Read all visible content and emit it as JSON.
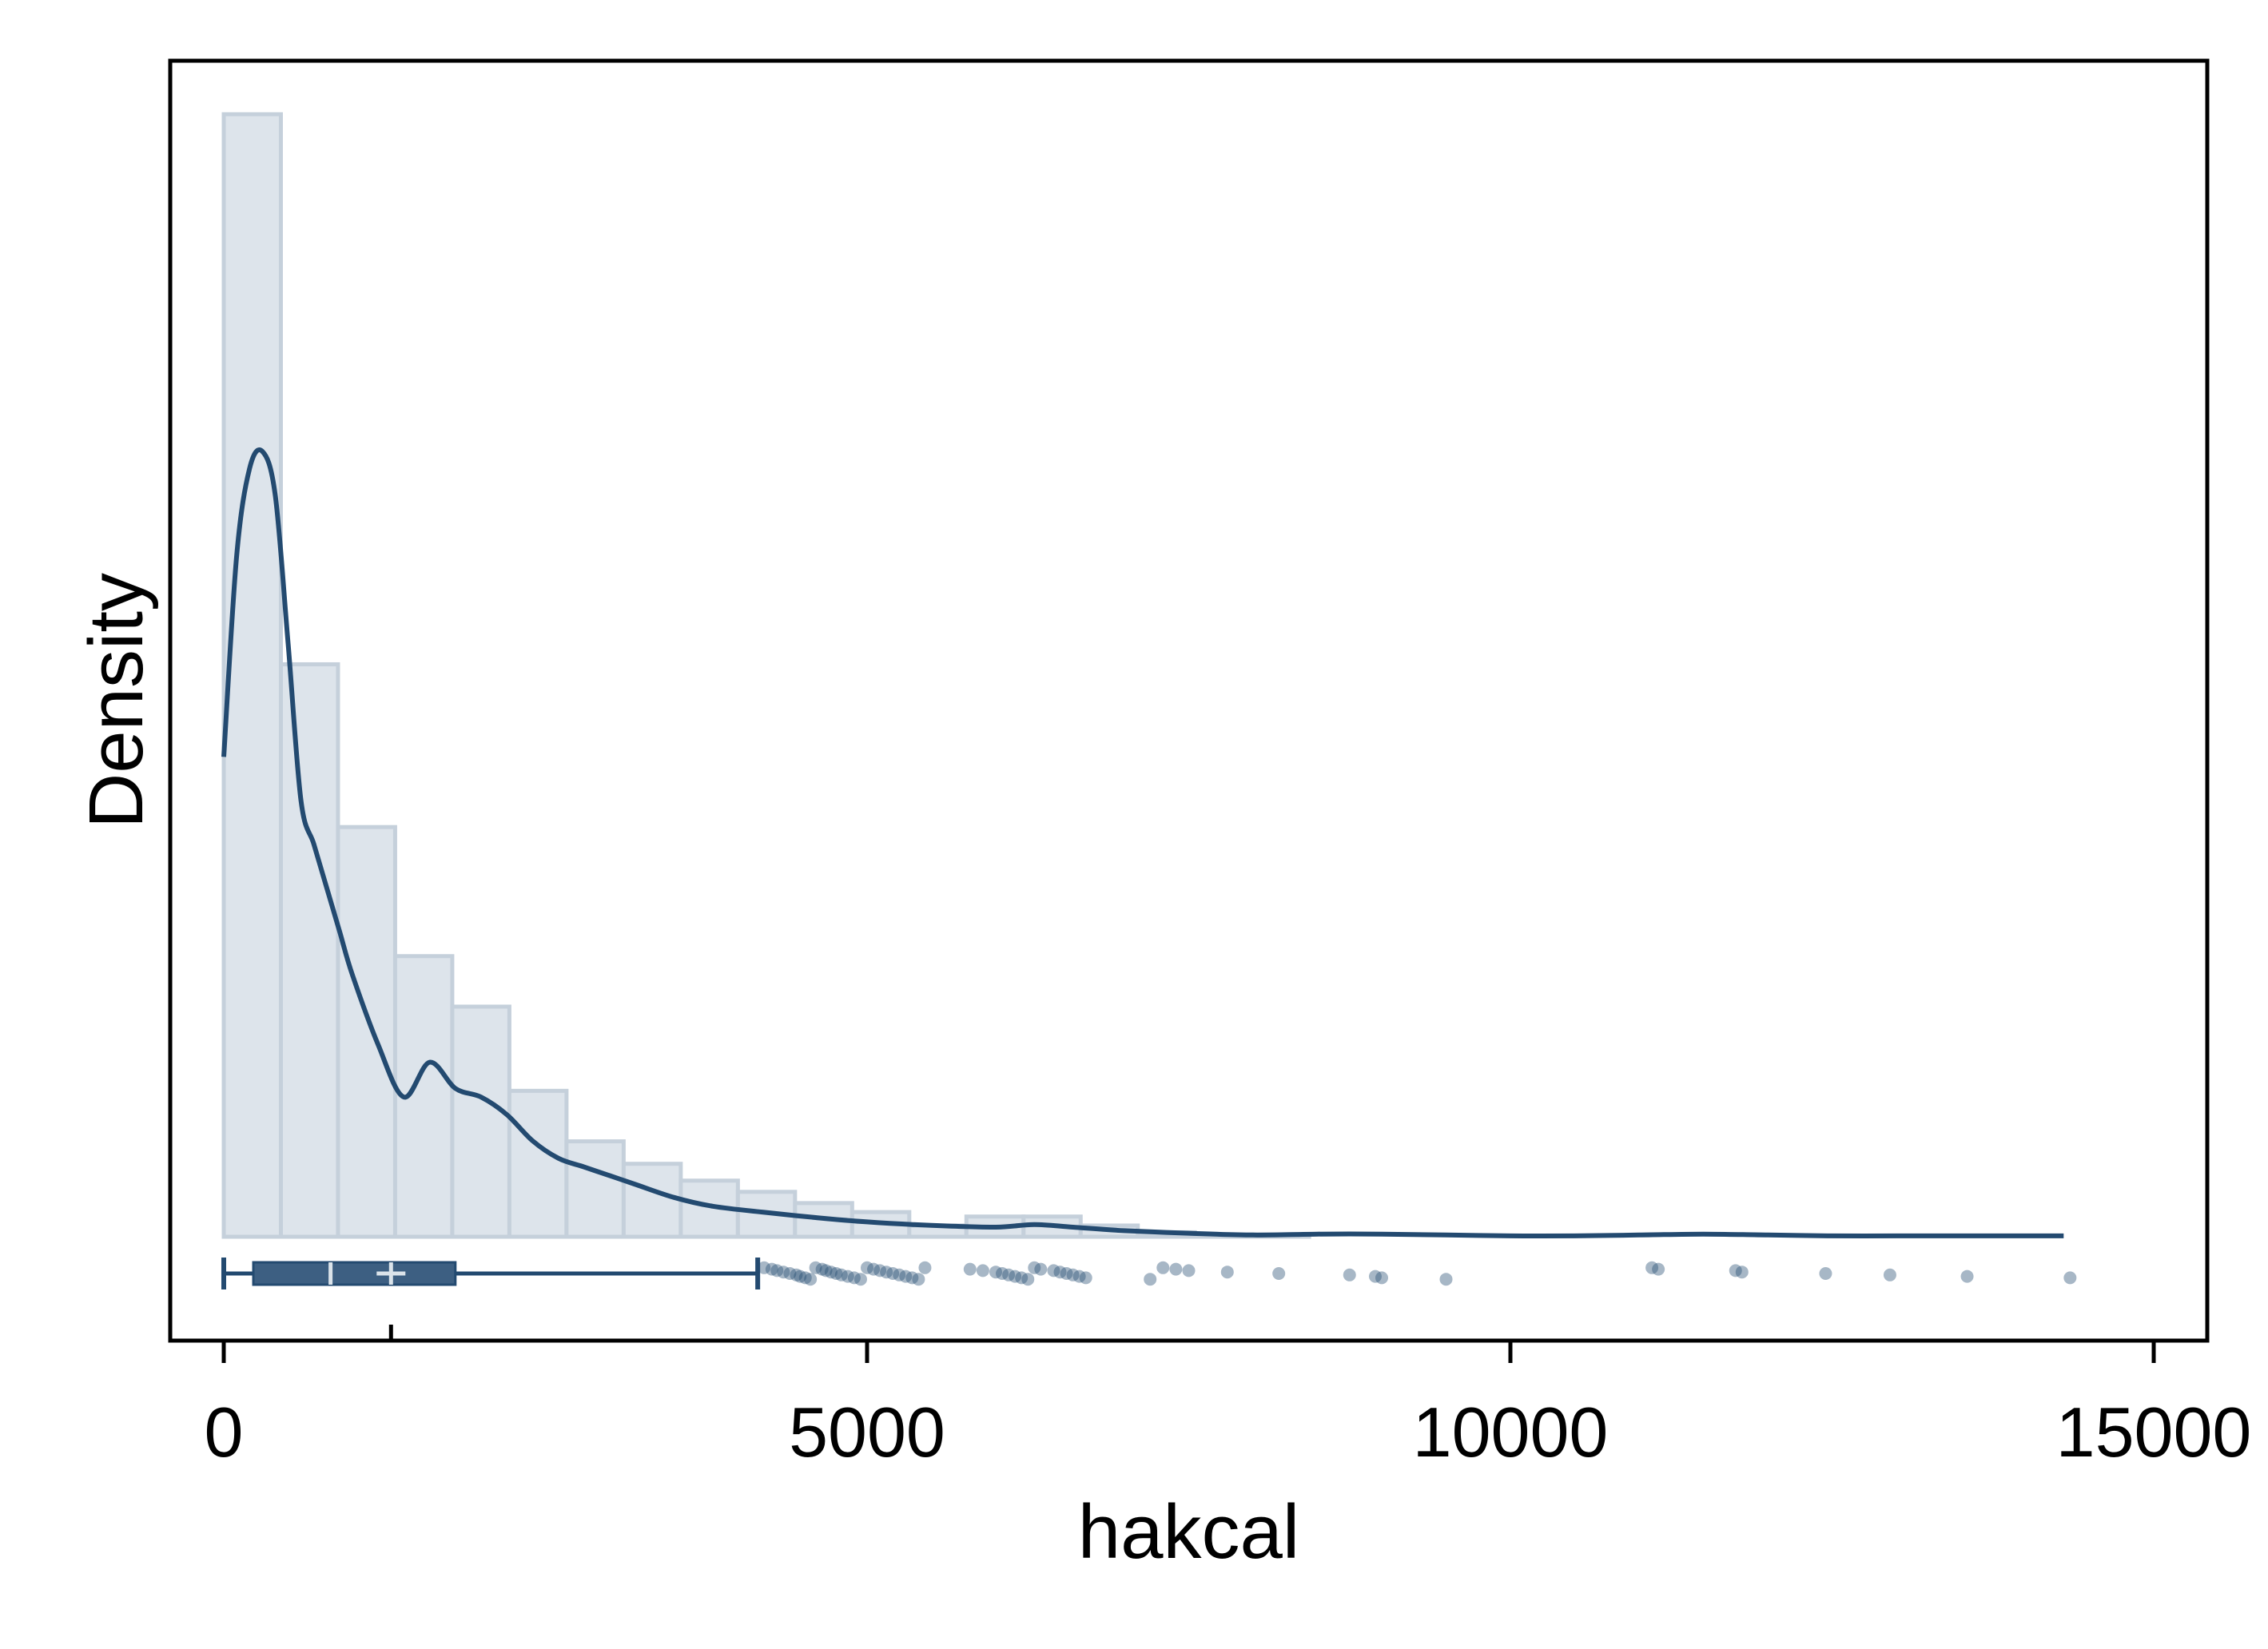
{
  "chart_data": {
    "type": "histogram-density-boxplot",
    "xlabel": "hakcal",
    "ylabel": "Density",
    "xlim": [
      -400,
      15400
    ],
    "x_ticks": [
      0,
      5000,
      10000,
      15000
    ],
    "x_tick_labels": [
      "0",
      "5000",
      "10000",
      "15000"
    ],
    "histogram": {
      "bin_width": 444,
      "bin_starts": [
        0,
        444,
        888,
        1332,
        1776,
        2220,
        2664,
        3108,
        3552,
        3996,
        4440,
        4884,
        5328,
        5772,
        6216,
        6660,
        7104,
        7548,
        7992,
        8436
      ],
      "relative_heights": [
        1.0,
        0.51,
        0.365,
        0.25,
        0.205,
        0.13,
        0.085,
        0.065,
        0.05,
        0.04,
        0.03,
        0.022,
        0.01,
        0.018,
        0.018,
        0.01,
        0.004,
        0.002,
        0.002,
        0.0
      ]
    },
    "density_curve": {
      "x": [
        0,
        100,
        200,
        300,
        400,
        500,
        600,
        700,
        800,
        900,
        1000,
        1200,
        1400,
        1600,
        1800,
        2000,
        2200,
        2400,
        2600,
        2800,
        3000,
        3200,
        3500,
        3800,
        4200,
        4600,
        5000,
        5500,
        6000,
        6300,
        6600,
        7000,
        7500,
        8000,
        8500,
        9000,
        9500,
        10000,
        10500,
        11000,
        11500,
        12000,
        12500,
        13000,
        13500,
        14000,
        14300
      ],
      "y": [
        0.55,
        0.78,
        0.88,
        0.9,
        0.85,
        0.68,
        0.5,
        0.45,
        0.4,
        0.35,
        0.3,
        0.22,
        0.16,
        0.2,
        0.17,
        0.16,
        0.14,
        0.11,
        0.09,
        0.08,
        0.07,
        0.06,
        0.045,
        0.035,
        0.028,
        0.022,
        0.017,
        0.013,
        0.011,
        0.014,
        0.011,
        0.007,
        0.004,
        0.002,
        0.003,
        0.003,
        0.002,
        0.001,
        0.001,
        0.002,
        0.003,
        0.002,
        0.001,
        0.001,
        0.001,
        0.001,
        0.001
      ]
    },
    "boxplot": {
      "whisker_low": 0,
      "q1": 230,
      "median": 830,
      "mean": 1300,
      "q3": 1800,
      "whisker_high": 4150,
      "outliers": [
        4200,
        4260,
        4300,
        4350,
        4400,
        4450,
        4480,
        4520,
        4560,
        4600,
        4650,
        4680,
        4720,
        4760,
        4800,
        4850,
        4900,
        4950,
        5000,
        5050,
        5100,
        5150,
        5200,
        5250,
        5300,
        5350,
        5400,
        5450,
        5800,
        5900,
        6000,
        6050,
        6100,
        6150,
        6200,
        6250,
        6300,
        6350,
        6450,
        6500,
        6550,
        6600,
        6650,
        6700,
        7200,
        7300,
        7400,
        7500,
        7800,
        8200,
        8750,
        8950,
        9000,
        9500,
        11100,
        11150,
        11750,
        11800,
        12450,
        12950,
        13550,
        14350
      ]
    },
    "colors": {
      "bar_fill": "#dde4eb",
      "bar_stroke": "#c5d0db",
      "line": "#234a70",
      "box_fill": "#3d5f82",
      "outlier": "#8ea3b8",
      "axis": "#000000"
    }
  }
}
